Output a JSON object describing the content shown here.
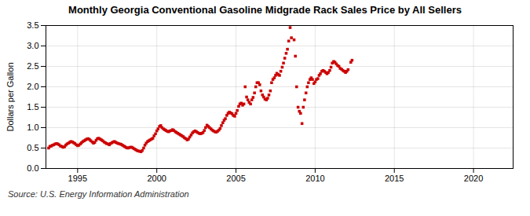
{
  "chart_data": {
    "type": "scatter",
    "title": "Monthly Georgia Conventional Gasoline Midgrade Rack Sales Price by All Sellers",
    "ylabel": "Dollars per Gallon",
    "source": "Source: U.S. Energy Information Administration",
    "color": "#CC0000",
    "marker": "square",
    "grid": true,
    "xlim": [
      1993.0,
      2022.5
    ],
    "ylim": [
      0.0,
      3.5
    ],
    "xticks": [
      1995,
      2000,
      2005,
      2010,
      2015,
      2020
    ],
    "yticks": [
      {
        "value": 0.0,
        "label": "0.0"
      },
      0.5,
      {
        "value": 1.0,
        "label": "1.0"
      },
      1.5,
      {
        "value": 2.0,
        "label": "2.0"
      },
      2.5,
      {
        "value": 3.0,
        "label": "3.0"
      },
      3.5
    ],
    "x": [
      1993.17,
      1993.25,
      1993.33,
      1993.42,
      1993.5,
      1993.58,
      1993.67,
      1993.75,
      1993.83,
      1993.92,
      1994.0,
      1994.08,
      1994.17,
      1994.25,
      1994.33,
      1994.42,
      1994.5,
      1994.58,
      1994.67,
      1994.75,
      1994.83,
      1994.92,
      1995.0,
      1995.08,
      1995.17,
      1995.25,
      1995.33,
      1995.42,
      1995.5,
      1995.58,
      1995.67,
      1995.75,
      1995.83,
      1995.92,
      1996.0,
      1996.08,
      1996.17,
      1996.25,
      1996.33,
      1996.42,
      1996.5,
      1996.58,
      1996.67,
      1996.75,
      1996.83,
      1996.92,
      1997.0,
      1997.08,
      1997.17,
      1997.25,
      1997.33,
      1997.42,
      1997.5,
      1997.58,
      1997.67,
      1997.75,
      1997.83,
      1997.92,
      1998.0,
      1998.08,
      1998.17,
      1998.25,
      1998.33,
      1998.42,
      1998.5,
      1998.58,
      1998.67,
      1998.75,
      1998.83,
      1998.92,
      1999.0,
      1999.08,
      1999.17,
      1999.25,
      1999.33,
      1999.42,
      1999.5,
      1999.58,
      1999.67,
      1999.75,
      1999.83,
      1999.92,
      2000.0,
      2000.08,
      2000.17,
      2000.25,
      2000.33,
      2000.42,
      2000.5,
      2000.58,
      2000.67,
      2000.75,
      2000.83,
      2000.92,
      2001.0,
      2001.08,
      2001.17,
      2001.25,
      2001.33,
      2001.42,
      2001.5,
      2001.58,
      2001.67,
      2001.75,
      2001.83,
      2001.92,
      2002.0,
      2002.08,
      2002.17,
      2002.25,
      2002.33,
      2002.42,
      2002.5,
      2002.58,
      2002.67,
      2002.75,
      2002.83,
      2002.92,
      2003.0,
      2003.08,
      2003.17,
      2003.25,
      2003.33,
      2003.42,
      2003.5,
      2003.58,
      2003.67,
      2003.75,
      2003.83,
      2003.92,
      2004.0,
      2004.08,
      2004.17,
      2004.25,
      2004.33,
      2004.42,
      2004.5,
      2004.58,
      2004.67,
      2004.75,
      2004.83,
      2004.92,
      2005.0,
      2005.08,
      2005.17,
      2005.25,
      2005.33,
      2005.42,
      2005.5,
      2005.58,
      2005.67,
      2005.75,
      2005.83,
      2005.92,
      2006.0,
      2006.08,
      2006.17,
      2006.25,
      2006.33,
      2006.42,
      2006.5,
      2006.58,
      2006.67,
      2006.75,
      2006.83,
      2006.92,
      2007.0,
      2007.08,
      2007.17,
      2007.25,
      2007.33,
      2007.42,
      2007.5,
      2007.58,
      2007.67,
      2007.75,
      2007.83,
      2007.92,
      2008.0,
      2008.08,
      2008.17,
      2008.25,
      2008.33,
      2008.42,
      2008.5,
      2008.67,
      2008.75,
      2008.83,
      2008.92,
      2009.0,
      2009.08,
      2009.17,
      2009.25,
      2009.33,
      2009.42,
      2009.5,
      2009.58,
      2009.67,
      2009.75,
      2009.83,
      2009.92,
      2010.0,
      2010.08,
      2010.17,
      2010.25,
      2010.33,
      2010.42,
      2010.5,
      2010.58,
      2010.67,
      2010.75,
      2010.83,
      2010.92,
      2011.0,
      2011.08,
      2011.17,
      2011.25,
      2011.33,
      2011.42,
      2011.5,
      2011.58,
      2011.67,
      2011.75,
      2011.83,
      2011.92,
      2012.0,
      2012.08,
      2012.25,
      2012.33
    ],
    "values": [
      0.5,
      0.54,
      0.55,
      0.57,
      0.58,
      0.6,
      0.61,
      0.6,
      0.58,
      0.55,
      0.54,
      0.52,
      0.53,
      0.57,
      0.6,
      0.62,
      0.64,
      0.66,
      0.65,
      0.63,
      0.61,
      0.58,
      0.56,
      0.57,
      0.6,
      0.63,
      0.66,
      0.68,
      0.7,
      0.72,
      0.73,
      0.71,
      0.68,
      0.65,
      0.62,
      0.64,
      0.69,
      0.73,
      0.74,
      0.72,
      0.7,
      0.68,
      0.65,
      0.63,
      0.61,
      0.6,
      0.58,
      0.61,
      0.63,
      0.65,
      0.66,
      0.64,
      0.62,
      0.61,
      0.6,
      0.59,
      0.57,
      0.55,
      0.53,
      0.51,
      0.5,
      0.51,
      0.52,
      0.52,
      0.5,
      0.48,
      0.46,
      0.44,
      0.43,
      0.42,
      0.41,
      0.44,
      0.5,
      0.57,
      0.62,
      0.66,
      0.68,
      0.7,
      0.72,
      0.74,
      0.8,
      0.85,
      0.92,
      0.97,
      1.03,
      1.05,
      1.0,
      0.97,
      0.95,
      0.93,
      0.91,
      0.9,
      0.92,
      0.93,
      0.95,
      0.93,
      0.9,
      0.88,
      0.86,
      0.84,
      0.82,
      0.8,
      0.78,
      0.75,
      0.73,
      0.7,
      0.72,
      0.77,
      0.82,
      0.87,
      0.9,
      0.92,
      0.9,
      0.88,
      0.86,
      0.85,
      0.86,
      0.88,
      0.93,
      1.0,
      1.06,
      1.03,
      1.0,
      0.97,
      0.94,
      0.92,
      0.9,
      0.89,
      0.91,
      0.94,
      0.98,
      1.05,
      1.12,
      1.18,
      1.22,
      1.3,
      1.35,
      1.38,
      1.36,
      1.34,
      1.3,
      1.28,
      1.35,
      1.42,
      1.52,
      1.58,
      1.6,
      1.55,
      1.58,
      2.0,
      1.75,
      1.68,
      1.62,
      1.58,
      1.68,
      1.74,
      1.85,
      2.0,
      2.1,
      2.1,
      2.05,
      1.9,
      1.8,
      1.75,
      1.7,
      1.68,
      1.72,
      1.8,
      1.9,
      2.1,
      2.18,
      2.22,
      2.28,
      2.33,
      2.3,
      2.28,
      2.38,
      2.48,
      2.58,
      2.7,
      2.82,
      2.92,
      3.12,
      3.45,
      3.2,
      3.15,
      2.75,
      2.0,
      1.5,
      1.4,
      1.35,
      1.1,
      1.5,
      1.68,
      1.85,
      2.0,
      2.1,
      2.18,
      2.22,
      2.18,
      2.08,
      2.12,
      2.18,
      2.2,
      2.28,
      2.32,
      2.38,
      2.4,
      2.38,
      2.35,
      2.32,
      2.35,
      2.4,
      2.48,
      2.58,
      2.62,
      2.6,
      2.56,
      2.52,
      2.5,
      2.45,
      2.43,
      2.4,
      2.38,
      2.35,
      2.38,
      2.42,
      2.6,
      2.65
    ]
  }
}
